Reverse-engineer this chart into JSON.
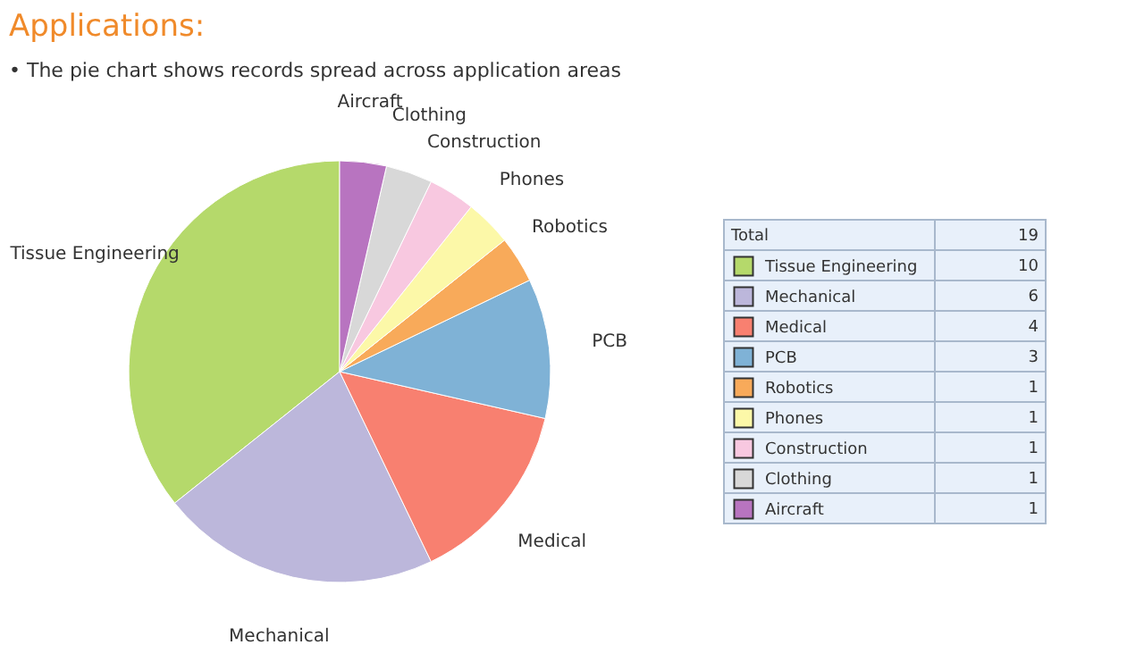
{
  "chart_data": {
    "type": "pie",
    "title": "Applications:",
    "subtitle": "•   The pie chart shows records spread across application areas",
    "categories": [
      "Tissue Engineering",
      "Mechanical",
      "Medical",
      "PCB",
      "Robotics",
      "Phones",
      "Construction",
      "Clothing",
      "Aircraft"
    ],
    "values": [
      10,
      6,
      4,
      3,
      1,
      1,
      1,
      1,
      1
    ],
    "colors": [
      "#b5d96b",
      "#bcb7db",
      "#f88070",
      "#7fb2d6",
      "#f8aa5a",
      "#fcf8a8",
      "#f8c8e0",
      "#d8d8d8",
      "#b874c0"
    ],
    "annotations": [
      "Total",
      "19"
    ],
    "data_labels": true,
    "legend": "right"
  }
}
